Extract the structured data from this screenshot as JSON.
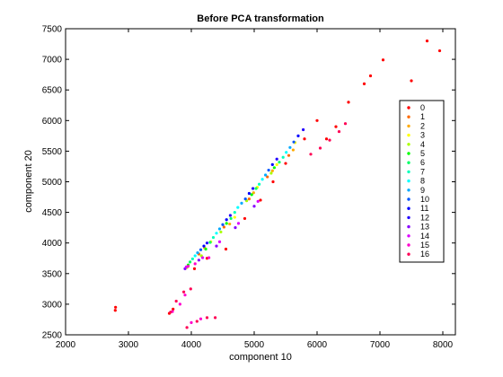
{
  "chart_data": {
    "type": "scatter",
    "title": "Before PCA transformation",
    "xlabel": "component 10",
    "ylabel": "component 20",
    "xlim": [
      2000,
      8200
    ],
    "ylim": [
      2500,
      7500
    ],
    "xticks": [
      2000,
      3000,
      4000,
      5000,
      6000,
      7000,
      8000
    ],
    "yticks": [
      2500,
      3000,
      3500,
      4000,
      4500,
      5000,
      5500,
      6000,
      6500,
      7000,
      7500
    ],
    "grid": false,
    "legend": {
      "position": "right",
      "entries": [
        "0",
        "1",
        "2",
        "3",
        "4",
        "5",
        "6",
        "7",
        "8",
        "9",
        "10",
        "11",
        "12",
        "13",
        "14",
        "15",
        "16"
      ]
    },
    "series": [
      {
        "name": "0",
        "color": "#ff0000",
        "points": [
          [
            2790,
            2900
          ],
          [
            2795,
            2950
          ],
          [
            3650,
            2850
          ],
          [
            3710,
            2920
          ],
          [
            4050,
            3580
          ],
          [
            4250,
            3750
          ],
          [
            4550,
            3900
          ],
          [
            4850,
            4400
          ],
          [
            5100,
            4700
          ],
          [
            5300,
            5000
          ],
          [
            5500,
            5300
          ],
          [
            5800,
            5700
          ],
          [
            6000,
            6000
          ],
          [
            6150,
            5700
          ],
          [
            6300,
            5900
          ],
          [
            6500,
            6300
          ],
          [
            6750,
            6600
          ],
          [
            6850,
            6730
          ],
          [
            7050,
            6990
          ],
          [
            7500,
            6650
          ],
          [
            7750,
            7300
          ],
          [
            7950,
            7140
          ]
        ]
      },
      {
        "name": "1",
        "color": "#ff6a00",
        "points": [
          [
            4120,
            3820
          ],
          [
            4520,
            4260
          ],
          [
            4920,
            4720
          ],
          [
            5210,
            5080
          ],
          [
            5550,
            5430
          ]
        ]
      },
      {
        "name": "2",
        "color": "#ffaa00",
        "points": [
          [
            4210,
            3920
          ],
          [
            4610,
            4310
          ],
          [
            4990,
            4820
          ],
          [
            5290,
            5180
          ],
          [
            5620,
            5520
          ]
        ]
      },
      {
        "name": "3",
        "color": "#ffff00",
        "points": [
          [
            4310,
            4020
          ],
          [
            4690,
            4420
          ],
          [
            5050,
            4910
          ],
          [
            5360,
            5280
          ],
          [
            5650,
            5640
          ]
        ]
      },
      {
        "name": "4",
        "color": "#aaff00",
        "points": [
          [
            3930,
            3600
          ],
          [
            4160,
            3790
          ],
          [
            4470,
            4180
          ],
          [
            4880,
            4690
          ],
          [
            5270,
            5140
          ]
        ]
      },
      {
        "name": "5",
        "color": "#00ff00",
        "points": [
          [
            3950,
            3640
          ],
          [
            4230,
            3900
          ],
          [
            4560,
            4320
          ],
          [
            4960,
            4790
          ],
          [
            5320,
            5230
          ]
        ]
      },
      {
        "name": "6",
        "color": "#00ff66",
        "points": [
          [
            3980,
            3690
          ],
          [
            4300,
            4010
          ],
          [
            4630,
            4400
          ],
          [
            5030,
            4890
          ],
          [
            5400,
            5320
          ]
        ]
      },
      {
        "name": "7",
        "color": "#00ffbb",
        "points": [
          [
            4020,
            3740
          ],
          [
            4350,
            4090
          ],
          [
            4690,
            4500
          ],
          [
            5080,
            4960
          ],
          [
            5460,
            5400
          ]
        ]
      },
      {
        "name": "8",
        "color": "#00ffff",
        "points": [
          [
            4060,
            3790
          ],
          [
            4400,
            4160
          ],
          [
            4740,
            4580
          ],
          [
            5130,
            5040
          ],
          [
            5510,
            5480
          ]
        ]
      },
      {
        "name": "9",
        "color": "#00aaff",
        "points": [
          [
            4100,
            3840
          ],
          [
            4450,
            4230
          ],
          [
            4800,
            4650
          ],
          [
            5180,
            5110
          ],
          [
            5570,
            5560
          ]
        ]
      },
      {
        "name": "10",
        "color": "#0055ff",
        "points": [
          [
            4150,
            3890
          ],
          [
            4500,
            4300
          ],
          [
            4860,
            4720
          ],
          [
            5230,
            5190
          ],
          [
            5630,
            5650
          ]
        ]
      },
      {
        "name": "11",
        "color": "#0000ff",
        "points": [
          [
            4200,
            3950
          ],
          [
            4560,
            4380
          ],
          [
            4920,
            4810
          ],
          [
            5290,
            5280
          ],
          [
            5700,
            5750
          ]
        ]
      },
      {
        "name": "12",
        "color": "#2200ff",
        "points": [
          [
            4250,
            4000
          ],
          [
            4620,
            4450
          ],
          [
            4980,
            4890
          ],
          [
            5360,
            5370
          ],
          [
            5780,
            5850
          ]
        ]
      },
      {
        "name": "13",
        "color": "#8800ff",
        "points": [
          [
            3900,
            3580
          ],
          [
            4120,
            3720
          ],
          [
            4400,
            3950
          ],
          [
            4700,
            4250
          ],
          [
            5000,
            4600
          ]
        ]
      },
      {
        "name": "14",
        "color": "#dd00ff",
        "points": [
          [
            3920,
            3610
          ],
          [
            4180,
            3760
          ],
          [
            4450,
            4020
          ],
          [
            4750,
            4320
          ],
          [
            5060,
            4680
          ]
        ]
      },
      {
        "name": "15",
        "color": "#ff00cc",
        "points": [
          [
            3700,
            2880
          ],
          [
            3820,
            3000
          ],
          [
            3900,
            3150
          ],
          [
            4000,
            2700
          ],
          [
            4150,
            2760
          ],
          [
            3950,
            3620
          ],
          [
            4060,
            3660
          ],
          [
            4280,
            3760
          ]
        ]
      },
      {
        "name": "16",
        "color": "#ff0055",
        "points": [
          [
            3670,
            2870
          ],
          [
            3760,
            3050
          ],
          [
            3880,
            3200
          ],
          [
            3990,
            3250
          ],
          [
            3930,
            2620
          ],
          [
            4090,
            2720
          ],
          [
            4250,
            2780
          ],
          [
            4380,
            2780
          ],
          [
            5900,
            5450
          ],
          [
            6050,
            5550
          ],
          [
            6200,
            5680
          ],
          [
            6350,
            5820
          ],
          [
            6450,
            5950
          ]
        ]
      }
    ]
  }
}
